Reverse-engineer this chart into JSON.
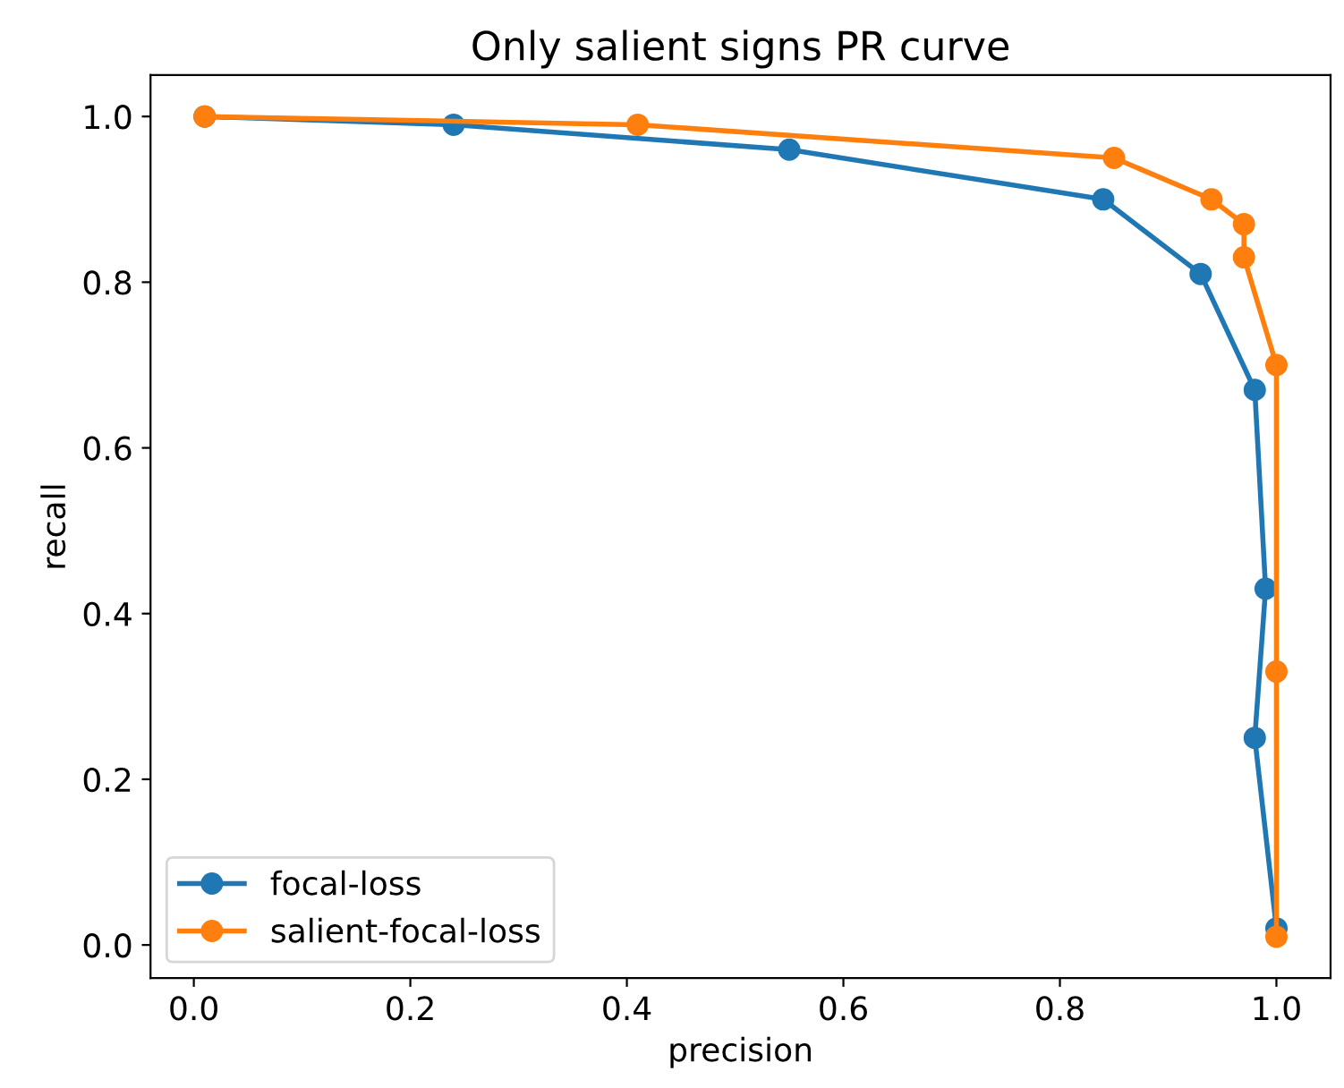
{
  "chart_data": {
    "type": "line",
    "title": "Only salient signs PR curve",
    "xlabel": "precision",
    "ylabel": "recall",
    "series": [
      {
        "name": "focal-loss",
        "color": "#1f77b4",
        "x": [
          0.01,
          0.24,
          0.55,
          0.84,
          0.93,
          0.98,
          0.99,
          0.98,
          1.0
        ],
        "values": [
          1.0,
          0.99,
          0.96,
          0.9,
          0.81,
          0.67,
          0.43,
          0.25,
          0.02
        ]
      },
      {
        "name": "salient-focal-loss",
        "color": "#ff7f0e",
        "x": [
          0.01,
          0.41,
          0.85,
          0.94,
          0.97,
          0.97,
          1.0,
          1.0,
          1.0
        ],
        "values": [
          1.0,
          0.99,
          0.95,
          0.9,
          0.87,
          0.83,
          0.7,
          0.33,
          0.01
        ]
      }
    ],
    "xlim": [
      -0.04,
      1.05
    ],
    "ylim": [
      -0.04,
      1.05
    ],
    "xticks": [
      {
        "value": 0,
        "label": "0.0"
      },
      {
        "value": 0.2,
        "label": "0.2"
      },
      {
        "value": 0.4,
        "label": "0.4"
      },
      {
        "value": 0.6,
        "label": "0.6"
      },
      {
        "value": 0.8,
        "label": "0.8"
      },
      {
        "value": 1,
        "label": "1.0"
      }
    ],
    "yticks": [
      {
        "value": 0,
        "label": "0.0"
      },
      {
        "value": 0.2,
        "label": "0.2"
      },
      {
        "value": 0.4,
        "label": "0.4"
      },
      {
        "value": 0.6,
        "label": "0.6"
      },
      {
        "value": 0.8,
        "label": "0.8"
      },
      {
        "value": 1,
        "label": "1.0"
      }
    ],
    "legend": "bottom left",
    "marker": "circle",
    "line_style": "solid",
    "grid": false
  }
}
